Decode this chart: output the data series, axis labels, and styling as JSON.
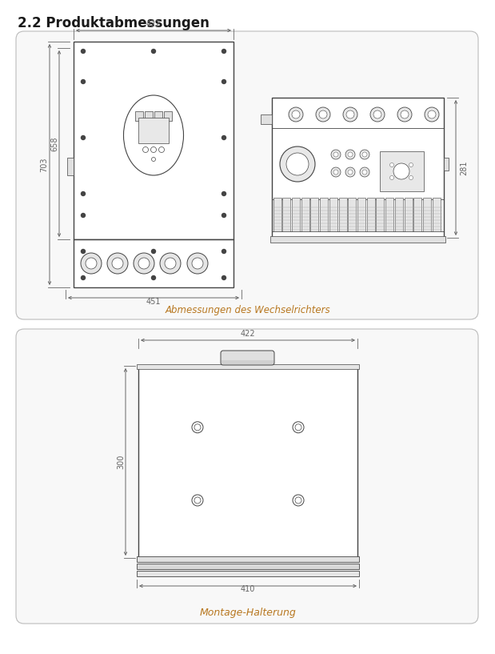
{
  "title": "2.2 Produktabmessungen",
  "title_color": "#1a1a1a",
  "title_fontsize": 12,
  "bg_color": "#ffffff",
  "line_color": "#444444",
  "dim_color": "#666666",
  "caption1": "Abmessungen des Wechselrichters",
  "caption2": "Montage-Halterung",
  "caption_color": "#b87820",
  "dim_422_top": "422",
  "dim_451_bottom": "451",
  "dim_703": "703",
  "dim_658": "658",
  "dim_281": "281",
  "dim_422_mount": "422",
  "dim_410_mount": "410",
  "dim_300_mount": "300"
}
